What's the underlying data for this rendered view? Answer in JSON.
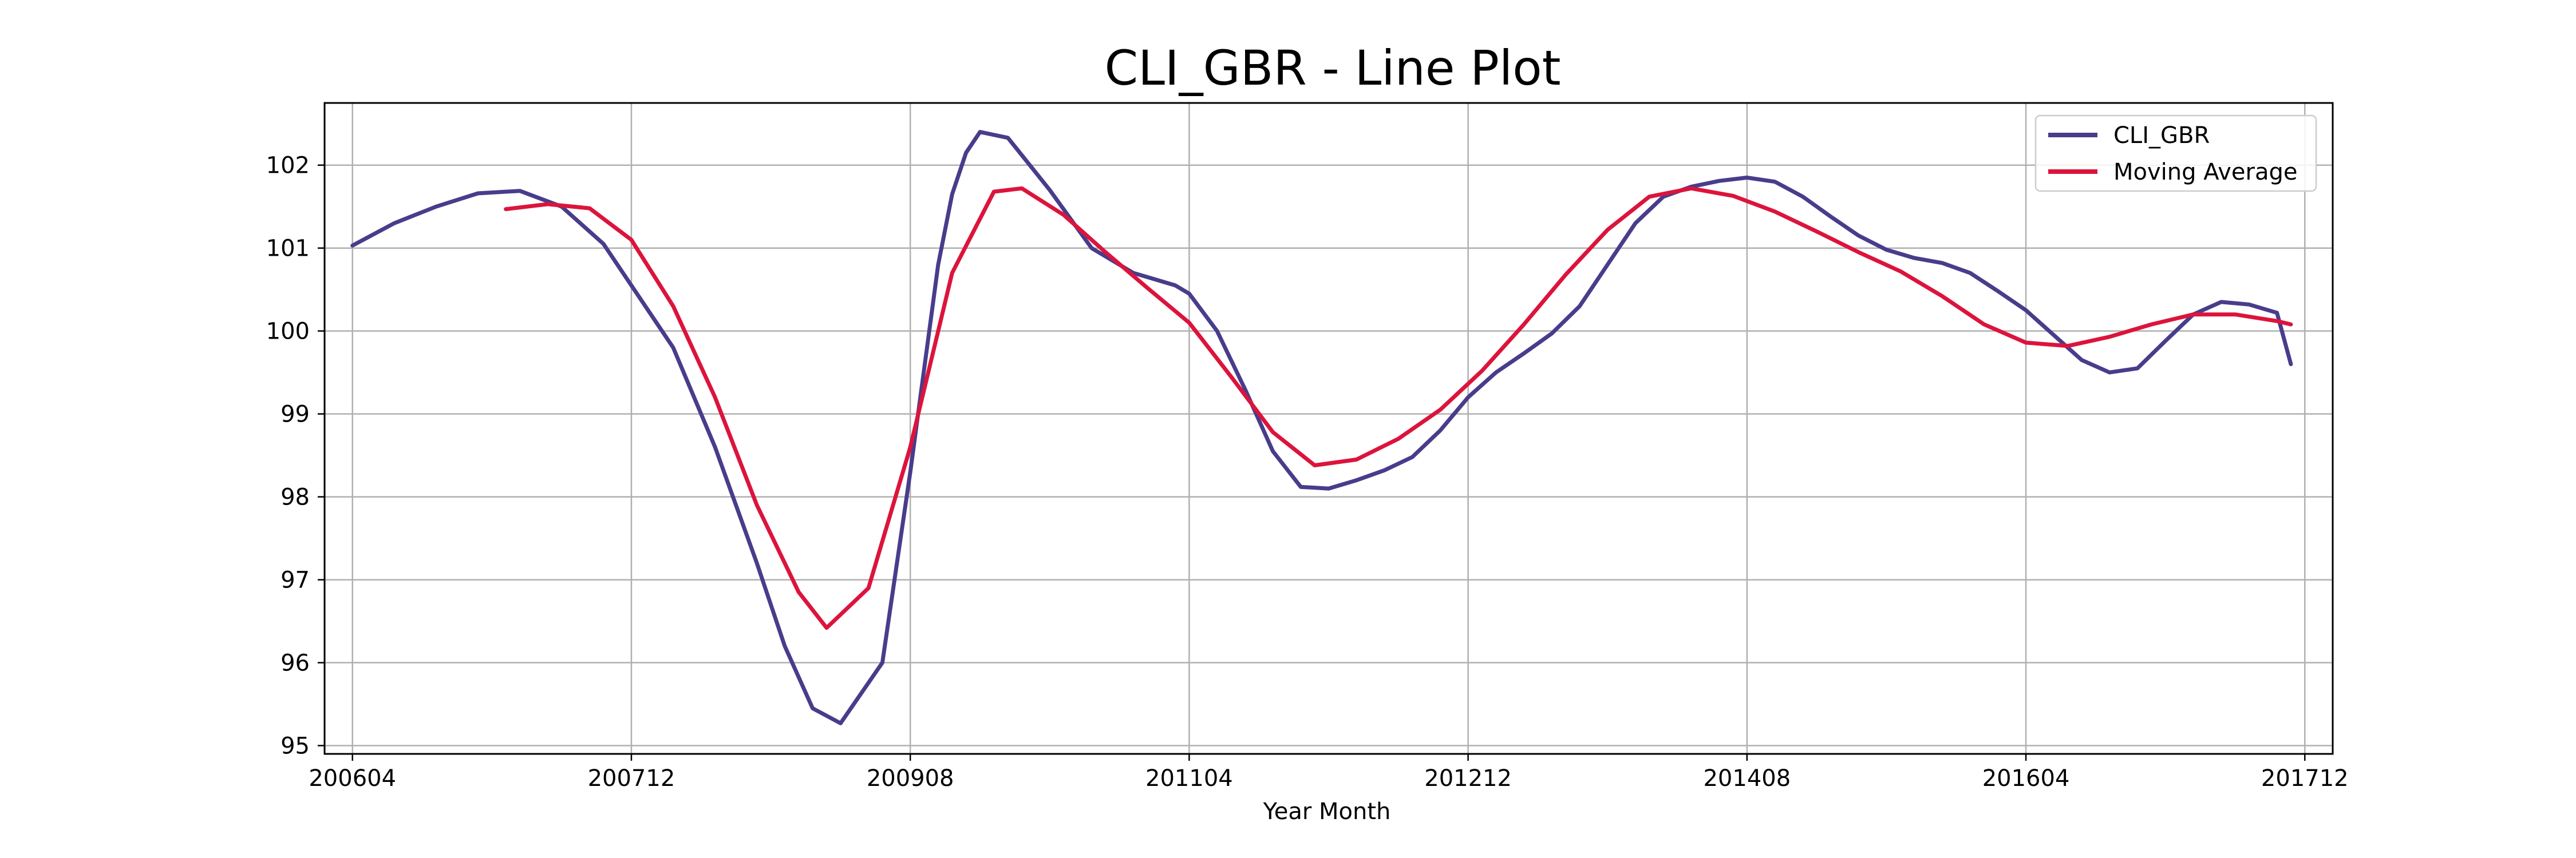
{
  "chart_data": {
    "type": "line",
    "title": "CLI_GBR - Line Plot",
    "xlabel": "Year Month",
    "ylabel": "",
    "grid": true,
    "legend_position": "top-right",
    "x_ticks": [
      "200604",
      "200712",
      "200908",
      "201104",
      "201212",
      "201408",
      "201604",
      "201712"
    ],
    "y_ticks": [
      "95",
      "96",
      "97",
      "98",
      "99",
      "100",
      "101",
      "102"
    ],
    "xlim": [
      "200602",
      "201802"
    ],
    "ylim": [
      94.9,
      102.75
    ],
    "colors": {
      "CLI_GBR": "#483d8b",
      "Moving Average": "#dc143c"
    },
    "series": [
      {
        "name": "CLI_GBR",
        "x": [
          "200604",
          "200607",
          "200610",
          "200701",
          "200704",
          "200707",
          "200710",
          "200712",
          "200803",
          "200806",
          "200809",
          "200811",
          "200901",
          "200903",
          "200906",
          "200908",
          "200910",
          "200911",
          "200912",
          "201001",
          "201003",
          "201006",
          "201009",
          "201012",
          "201103",
          "201104",
          "201106",
          "201108",
          "201110",
          "201112",
          "201202",
          "201204",
          "201206",
          "201208",
          "201210",
          "201212",
          "201302",
          "201304",
          "201306",
          "201308",
          "201310",
          "201312",
          "201402",
          "201404",
          "201406",
          "201408",
          "201410",
          "201412",
          "201502",
          "201504",
          "201506",
          "201508",
          "201510",
          "201512",
          "201602",
          "201604",
          "201606",
          "201608",
          "201610",
          "201612",
          "201702",
          "201704",
          "201706",
          "201708",
          "201710",
          "201711"
        ],
        "y": [
          101.03,
          101.3,
          101.5,
          101.66,
          101.69,
          101.5,
          101.05,
          100.55,
          99.8,
          98.6,
          97.2,
          96.2,
          95.45,
          95.27,
          96.0,
          98.3,
          100.8,
          101.65,
          102.15,
          102.4,
          102.33,
          101.7,
          101.0,
          100.7,
          100.55,
          100.45,
          100.0,
          99.3,
          98.55,
          98.12,
          98.1,
          98.2,
          98.32,
          98.48,
          98.8,
          99.2,
          99.5,
          99.73,
          99.97,
          100.3,
          100.8,
          101.3,
          101.62,
          101.74,
          101.81,
          101.85,
          101.8,
          101.62,
          101.38,
          101.15,
          100.98,
          100.88,
          100.82,
          100.7,
          100.48,
          100.25,
          99.95,
          99.65,
          99.5,
          99.55,
          99.88,
          100.2,
          100.35,
          100.32,
          100.22,
          99.6
        ]
      },
      {
        "name": "Moving Average",
        "x": [
          "200703",
          "200706",
          "200709",
          "200712",
          "200803",
          "200806",
          "200809",
          "200812",
          "200902",
          "200905",
          "200908",
          "200911",
          "201002",
          "201004",
          "201007",
          "201010",
          "201101",
          "201104",
          "201107",
          "201110",
          "201201",
          "201204",
          "201207",
          "201210",
          "201301",
          "201304",
          "201307",
          "201310",
          "201401",
          "201404",
          "201407",
          "201410",
          "201501",
          "201504",
          "201507",
          "201510",
          "201601",
          "201604",
          "201607",
          "201610",
          "201701",
          "201704",
          "201707",
          "201710",
          "201711"
        ],
        "y": [
          101.47,
          101.53,
          101.48,
          101.1,
          100.3,
          99.2,
          97.9,
          96.85,
          96.42,
          96.9,
          98.6,
          100.7,
          101.68,
          101.72,
          101.4,
          100.95,
          100.52,
          100.1,
          99.45,
          98.78,
          98.38,
          98.45,
          98.7,
          99.05,
          99.52,
          100.08,
          100.68,
          101.22,
          101.62,
          101.72,
          101.63,
          101.44,
          101.2,
          100.95,
          100.72,
          100.42,
          100.08,
          99.86,
          99.82,
          99.93,
          100.08,
          100.2,
          100.2,
          100.12,
          100.08
        ]
      }
    ]
  }
}
